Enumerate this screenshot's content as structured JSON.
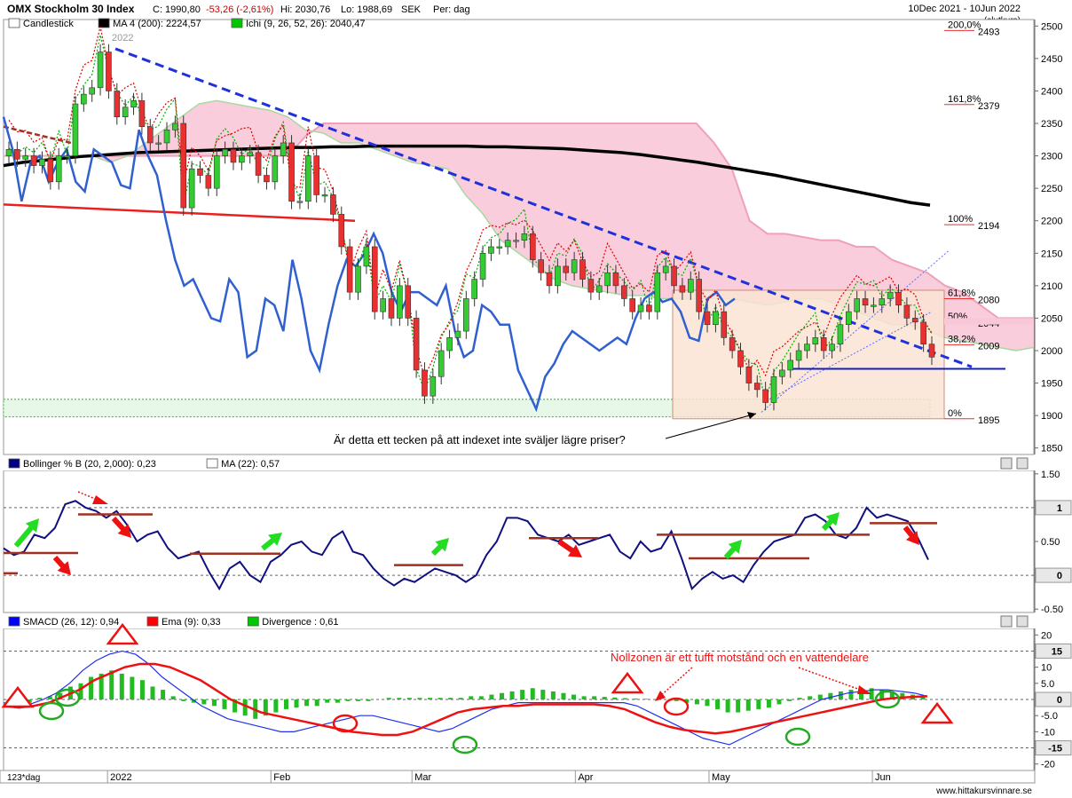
{
  "header": {
    "symbol": "OMX Stockholm 30 Index",
    "close": "C: 1990,80",
    "change": "-53,26 (-2,61%)",
    "high": "Hi: 2030,76",
    "low": "Lo: 1988,69",
    "currency": "SEK",
    "period": "Per: dag",
    "range": "10Dec 2021 - 10Jun 2022",
    "range_note": "(slutkurs)",
    "year_label": "2022"
  },
  "legend_main": [
    {
      "label": "Candlestick",
      "color": "#ffffff"
    },
    {
      "label": "MA 4 (200): 2224,57",
      "color": "#000000"
    },
    {
      "label": "Ichi (9, 26, 52, 26): 2040,47",
      "color": "#00c800"
    }
  ],
  "legend_boll": [
    {
      "label": "Bollinger % B (20, 2,000): 0,23",
      "color": "#000080"
    },
    {
      "label": "MA (22): 0,57",
      "color": "#ffffff"
    }
  ],
  "legend_macd": [
    {
      "label": "SMACD (26, 12): 0,94",
      "color": "#0000ff"
    },
    {
      "label": "Ema (9): 0,33",
      "color": "#ff0000"
    },
    {
      "label": "Divergence : 0,61",
      "color": "#00c800"
    }
  ],
  "annotations": {
    "main_question": "Är detta ett tecken på att indexet inte sväljer lägre priser?",
    "macd_note": "Nollzonen är ett tufft motstånd och en vattendelare",
    "watermark": "www.hittakursvinnare.se",
    "footer_left": "123*dag"
  },
  "fib_levels": [
    {
      "pct": "200,0%",
      "value": 2493,
      "value_label": "2493"
    },
    {
      "pct": "161,8%",
      "value": 2379,
      "value_label": "2379"
    },
    {
      "pct": "100%",
      "value": 2194,
      "value_label": "2194"
    },
    {
      "pct": "61,8%",
      "value": 2080,
      "value_label": "2080"
    },
    {
      "pct": "50%",
      "value": 2044,
      "value_label": "2044"
    },
    {
      "pct": "38,2%",
      "value": 2009,
      "value_label": "2009"
    },
    {
      "pct": "0%",
      "value": 1895,
      "value_label": "1895"
    }
  ],
  "chart_data": [
    {
      "type": "candlestick",
      "title": "OMX Stockholm 30 Index",
      "yticks": [
        1850,
        1900,
        1950,
        2000,
        2050,
        2100,
        2150,
        2200,
        2250,
        2300,
        2350,
        2400,
        2450,
        2500
      ],
      "ylim": [
        1840,
        2510
      ],
      "x_month_labels": [
        {
          "label": "2022",
          "day": 14
        },
        {
          "label": "Feb",
          "day": 36
        },
        {
          "label": "Mar",
          "day": 55
        },
        {
          "label": "Apr",
          "day": 77
        },
        {
          "label": "May",
          "day": 95
        },
        {
          "label": "Jun",
          "day": 117
        }
      ],
      "ohlc_close": [
        2310,
        2295,
        2300,
        2285,
        2295,
        2260,
        2300,
        2300,
        2380,
        2395,
        2405,
        2460,
        2400,
        2360,
        2375,
        2385,
        2345,
        2320,
        2320,
        2340,
        2350,
        2220,
        2280,
        2270,
        2250,
        2300,
        2310,
        2290,
        2300,
        2305,
        2270,
        2260,
        2300,
        2320,
        2230,
        2230,
        2300,
        2240,
        2240,
        2210,
        2160,
        2090,
        2130,
        2160,
        2060,
        2080,
        2050,
        2100,
        2050,
        1970,
        1930,
        1960,
        2000,
        2020,
        2030,
        2080,
        2110,
        2150,
        2160,
        2160,
        2170,
        2170,
        2180,
        2140,
        2120,
        2100,
        2130,
        2120,
        2140,
        2110,
        2090,
        2100,
        2120,
        2100,
        2080,
        2060,
        2070,
        2060,
        2120,
        2130,
        2100,
        2090,
        2110,
        2060,
        2040,
        2060,
        2020,
        2000,
        1975,
        1950,
        1940,
        1920,
        1960,
        1970,
        1985,
        2000,
        2010,
        2020,
        2000,
        2010,
        2040,
        2060,
        2080,
        2070,
        2070,
        2080,
        2090,
        2070,
        2050,
        2044,
        2010,
        1990
      ],
      "ma200": [
        2285,
        2290,
        2293,
        2296,
        2299,
        2301,
        2303,
        2305,
        2306,
        2307,
        2308,
        2309,
        2310,
        2311,
        2312,
        2313,
        2313,
        2314,
        2314,
        2315,
        2315,
        2315,
        2315,
        2315,
        2315,
        2314,
        2314,
        2313,
        2312,
        2311,
        2309,
        2307,
        2305,
        2302,
        2298,
        2294,
        2290,
        2285,
        2280,
        2275,
        2270,
        2264,
        2258,
        2252,
        2246,
        2240,
        2234,
        2228,
        2224
      ],
      "smacd_points": [],
      "note": "Price ~2310 at start, peak ~2465 late Dec 2021, trough ~1900 early Mar 2022, last close 1990,80"
    },
    {
      "type": "line",
      "title": "Bollinger % B (20, 2,000)",
      "yticks": [
        -0.5,
        0,
        0.5,
        1,
        1.5
      ],
      "ylim": [
        -0.55,
        1.55
      ],
      "highlighted_levels": [
        1,
        0
      ],
      "series": [
        {
          "name": "Bollinger % B",
          "last": 0.23,
          "values": [
            0.4,
            0.3,
            0.35,
            0.6,
            0.55,
            0.7,
            1.05,
            1.1,
            1.0,
            0.95,
            0.85,
            0.95,
            0.75,
            0.5,
            0.6,
            0.65,
            0.4,
            0.25,
            0.3,
            0.35,
            0.05,
            -0.2,
            0.1,
            0.2,
            0.0,
            -0.1,
            0.2,
            0.3,
            0.45,
            0.5,
            0.35,
            0.3,
            0.55,
            0.65,
            0.35,
            0.3,
            0.1,
            -0.05,
            -0.15,
            -0.05,
            -0.1,
            0.0,
            0.1,
            0.05,
            0.0,
            -0.1,
            0.0,
            0.3,
            0.5,
            0.85,
            0.85,
            0.8,
            0.6,
            0.55,
            0.5,
            0.6,
            0.45,
            0.5,
            0.55,
            0.6,
            0.35,
            0.25,
            0.5,
            0.35,
            0.4,
            0.65,
            0.25,
            -0.2,
            -0.05,
            0.05,
            -0.05,
            0.0,
            -0.1,
            0.15,
            0.35,
            0.5,
            0.55,
            0.6,
            0.85,
            0.9,
            0.8,
            0.6,
            0.55,
            0.7,
            1.0,
            0.85,
            0.9,
            0.85,
            0.8,
            0.55,
            0.23
          ]
        }
      ]
    },
    {
      "type": "bar",
      "title": "SMACD (26, 12)",
      "yticks": [
        -20,
        -15,
        -10,
        -5,
        0,
        5,
        10,
        15,
        20
      ],
      "ylim": [
        -22,
        22
      ],
      "highlighted_levels": [
        15,
        0,
        -15
      ],
      "series": [
        {
          "name": "SMACD",
          "last": 0.94
        },
        {
          "name": "Ema (9)",
          "last": 0.33
        },
        {
          "name": "Divergence",
          "last": 0.61
        }
      ]
    }
  ]
}
